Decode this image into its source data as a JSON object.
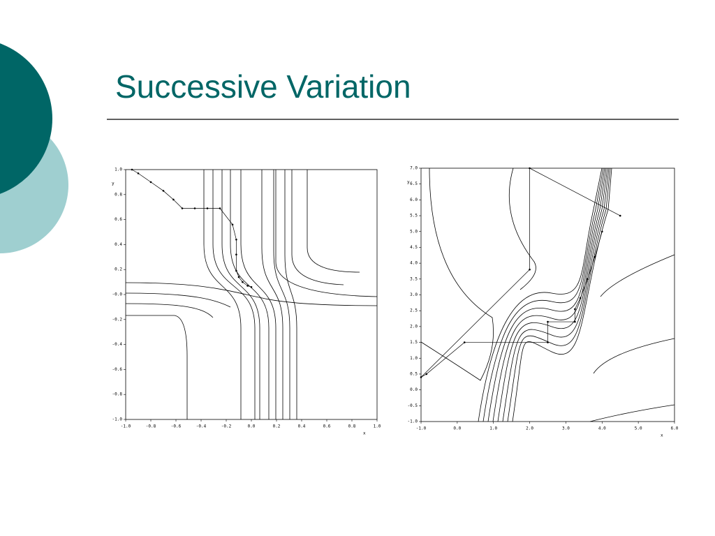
{
  "title": "Successive Variation",
  "chart_data": [
    {
      "type": "contour",
      "x_label": "x",
      "y_label": "y",
      "xlim": [
        -1,
        1
      ],
      "ylim": [
        -1,
        1
      ],
      "xticks": [
        {
          "value": -1,
          "label": "-1.0"
        },
        {
          "value": -0.8,
          "label": "-0.8"
        },
        {
          "value": -0.6,
          "label": "-0.6"
        },
        {
          "value": -0.4,
          "label": "-0.4"
        },
        {
          "value": -0.2,
          "label": "-0.2"
        },
        {
          "value": 0,
          "label": "0.0"
        },
        {
          "value": 0.2,
          "label": "0.2"
        },
        {
          "value": 0.4,
          "label": "0.4"
        },
        {
          "value": 0.6,
          "label": "0.6"
        },
        {
          "value": 0.8,
          "label": "0.8"
        },
        {
          "value": 1,
          "label": "1.0"
        }
      ],
      "yticks": [
        {
          "value": 1,
          "label": "1.0"
        },
        {
          "value": 0.8,
          "label": "0.8"
        },
        {
          "value": 0.6,
          "label": "0.6"
        },
        {
          "value": 0.4,
          "label": "0.4"
        },
        {
          "value": 0.2,
          "label": "0.2"
        },
        {
          "value": 0,
          "label": "-0.0"
        },
        {
          "value": -0.2,
          "label": "-0.2"
        },
        {
          "value": -0.4,
          "label": "-0.4"
        },
        {
          "value": -0.6,
          "label": "-0.6"
        },
        {
          "value": -0.8,
          "label": "-0.8"
        },
        {
          "value": -1,
          "label": "-1.0"
        }
      ],
      "x": [
        -0.95,
        -0.9,
        -0.8,
        -0.7,
        -0.62,
        -0.55,
        -0.45,
        -0.35,
        -0.25,
        -0.15,
        -0.12,
        -0.12,
        -0.12,
        -0.1,
        -0.07,
        -0.03,
        0.0
      ],
      "values": [
        1.0,
        0.97,
        0.9,
        0.83,
        0.76,
        0.69,
        0.69,
        0.69,
        0.69,
        0.56,
        0.44,
        0.32,
        0.19,
        0.14,
        0.1,
        0.07,
        0.06
      ]
    },
    {
      "type": "contour",
      "x_label": "x",
      "y_label": "y",
      "xlim": [
        -1,
        6
      ],
      "ylim": [
        -1,
        7
      ],
      "xticks": [
        {
          "value": -1,
          "label": "-1.0"
        },
        {
          "value": 0,
          "label": "0.0"
        },
        {
          "value": 1,
          "label": "1.0"
        },
        {
          "value": 2,
          "label": "2.0"
        },
        {
          "value": 3,
          "label": "3.0"
        },
        {
          "value": 4,
          "label": "4.0"
        },
        {
          "value": 5,
          "label": "5.0"
        },
        {
          "value": 6,
          "label": "6.0"
        }
      ],
      "yticks": [
        {
          "value": -1,
          "label": "-1.0"
        },
        {
          "value": -0.5,
          "label": "-0.5"
        },
        {
          "value": 0,
          "label": "0.0"
        },
        {
          "value": 0.5,
          "label": "0.5"
        },
        {
          "value": 1,
          "label": "1.0"
        },
        {
          "value": 1.5,
          "label": "1.5"
        },
        {
          "value": 2,
          "label": "2.0"
        },
        {
          "value": 2.5,
          "label": "2.5"
        },
        {
          "value": 3,
          "label": "3.0"
        },
        {
          "value": 3.5,
          "label": "3.5"
        },
        {
          "value": 4,
          "label": "4.0"
        },
        {
          "value": 4.5,
          "label": "4.5"
        },
        {
          "value": 5,
          "label": "5.0"
        },
        {
          "value": 5.5,
          "label": "5.5"
        },
        {
          "value": 6,
          "label": "6.0"
        },
        {
          "value": 6.5,
          "label": "6.5"
        },
        {
          "value": 7,
          "label": "7.0"
        }
      ],
      "x": [
        4.5,
        2.0,
        2.0,
        -1.0,
        -0.85,
        0.2,
        2.5,
        2.5,
        3.25,
        3.25,
        3.4,
        3.6,
        3.8,
        4.0
      ],
      "values": [
        5.5,
        7.0,
        3.8,
        0.4,
        0.5,
        1.5,
        1.5,
        2.15,
        2.15,
        2.55,
        2.9,
        3.5,
        4.2,
        5.0
      ]
    }
  ]
}
